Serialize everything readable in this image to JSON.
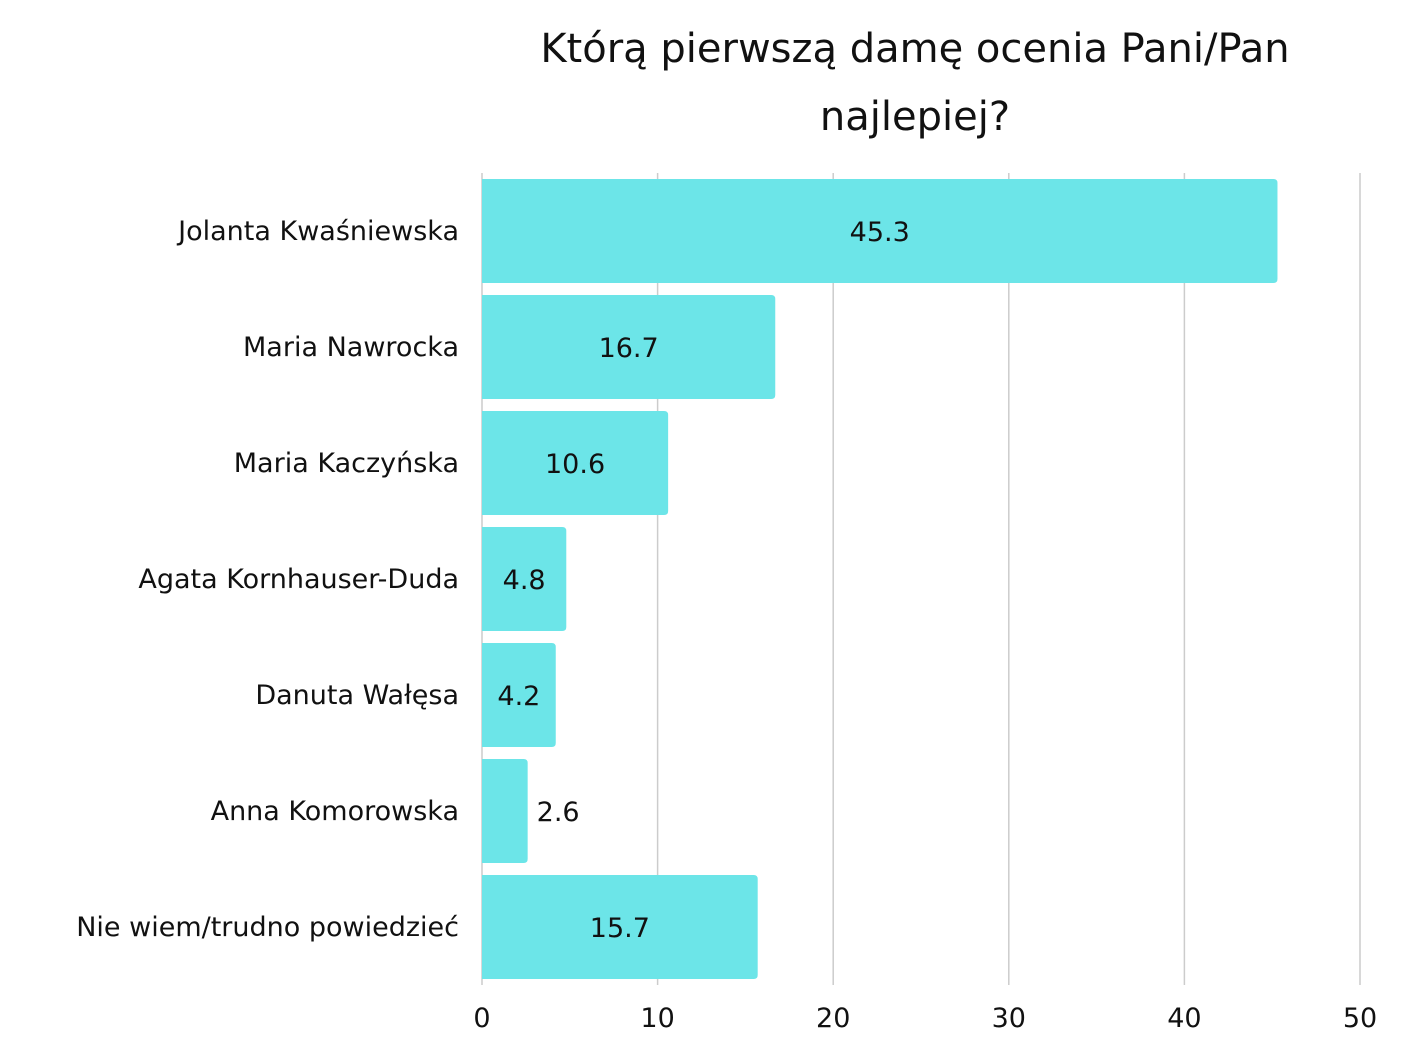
{
  "chart_data": {
    "type": "bar",
    "orientation": "horizontal",
    "title_lines": [
      "Którą pierwszą damę ocenia Pani/Pan",
      "najlepiej?"
    ],
    "categories": [
      "Jolanta Kwaśniewska",
      "Maria Nawrocka",
      "Maria Kaczyńska",
      "Agata Kornhauser-Duda",
      "Danuta Wałęsa",
      "Anna Komorowska",
      "Nie wiem/trudno powiedzieć"
    ],
    "values": [
      45.3,
      16.7,
      10.6,
      4.8,
      4.2,
      2.6,
      15.7
    ],
    "value_labels": [
      "45.3",
      "16.7",
      "10.6",
      "4.8",
      "4.2",
      "2.6",
      "15.7"
    ],
    "xlim": [
      0,
      50
    ],
    "xticks": [
      0,
      10,
      20,
      30,
      40,
      50
    ],
    "xtick_labels": [
      "0",
      "10",
      "20",
      "30",
      "40",
      "50"
    ],
    "xlabel": "",
    "ylabel": "",
    "grid": "vertical",
    "legend": "none",
    "bar_color": "#6ce5e8",
    "gridline_color": "#cccccc",
    "text_color": "#111111"
  }
}
